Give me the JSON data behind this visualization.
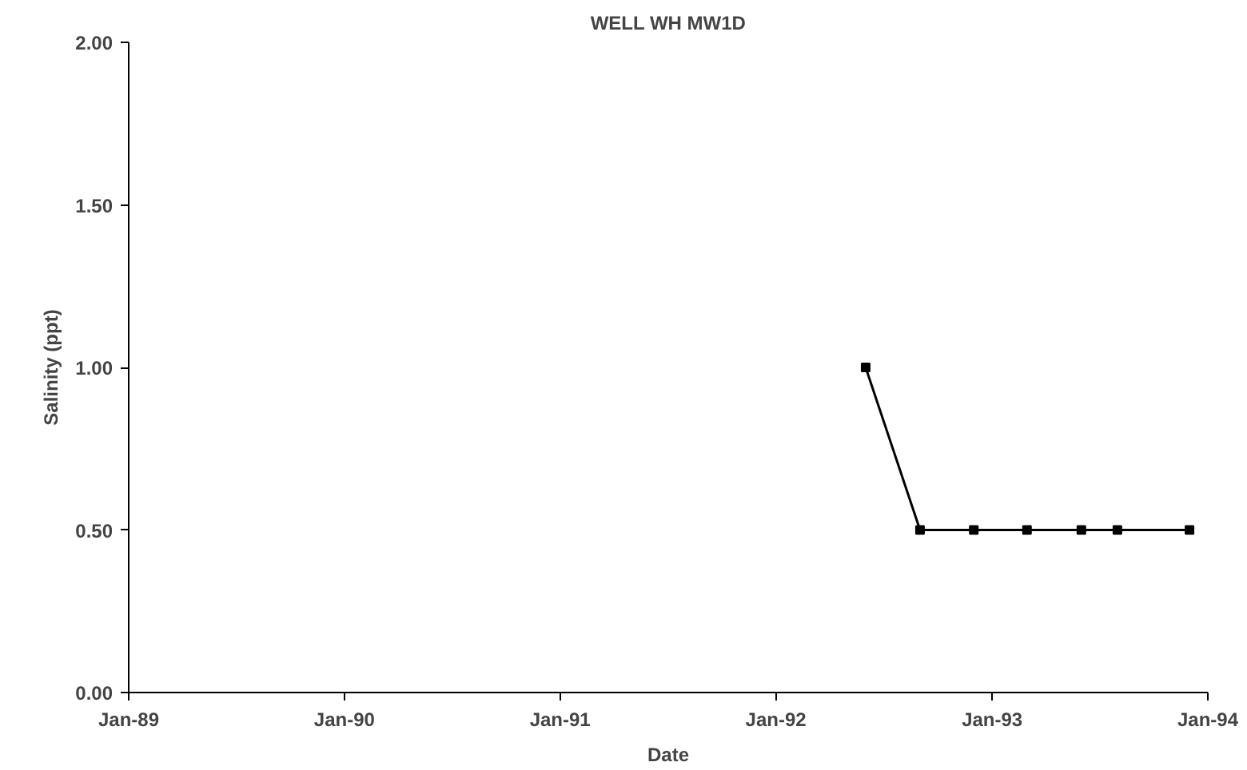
{
  "chart_data": {
    "type": "line",
    "title": "WELL WH MW1D",
    "xlabel": "Date",
    "ylabel": "Salinity (ppt)",
    "x": [
      "1992-06-01",
      "1992-09-01",
      "1992-12-01",
      "1993-03-01",
      "1993-06-01",
      "1993-08-01",
      "1993-12-01"
    ],
    "series": [
      {
        "color": "#000000",
        "values": [
          1.0,
          0.5,
          0.5,
          0.5,
          0.5,
          0.5,
          0.5
        ]
      }
    ],
    "xlim": [
      "1989-01-01",
      "1994-01-01"
    ],
    "xticks": [
      {
        "value": "1989-01-01",
        "label": "Jan-89"
      },
      {
        "value": "1990-01-01",
        "label": "Jan-90"
      },
      {
        "value": "1991-01-01",
        "label": "Jan-91"
      },
      {
        "value": "1992-01-01",
        "label": "Jan-92"
      },
      {
        "value": "1993-01-01",
        "label": "Jan-93"
      },
      {
        "value": "1994-01-01",
        "label": "Jan-94"
      }
    ],
    "ylim": [
      0,
      2
    ],
    "yticks": [
      {
        "value": 0,
        "label": "0.00"
      },
      {
        "value": 0.5,
        "label": "0.50"
      },
      {
        "value": 1,
        "label": "1.00"
      },
      {
        "value": 1.5,
        "label": "1.50"
      },
      {
        "value": 2,
        "label": "2.00"
      }
    ],
    "grid": false,
    "marker": "square",
    "line_style": "solid"
  }
}
